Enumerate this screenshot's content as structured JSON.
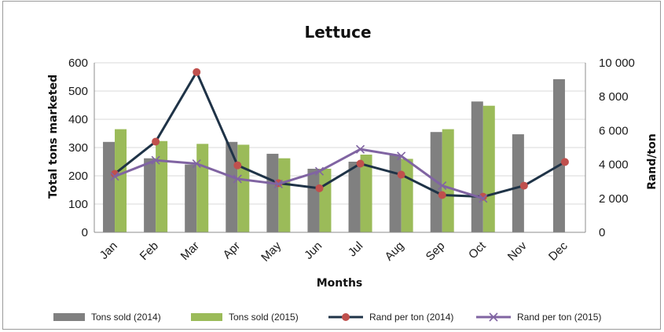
{
  "chart_data": {
    "type": "bar",
    "title": "Lettuce",
    "xlabel": "Months",
    "ylabel": "Total tons marketed",
    "y2label": "Rand/ton",
    "categories": [
      "Jan",
      "Feb",
      "Mar",
      "Apr",
      "May",
      "Jun",
      "Jul",
      "Aug",
      "Sep",
      "Oct",
      "Nov",
      "Dec"
    ],
    "ylim": [
      0,
      600
    ],
    "yticks": [
      "0",
      "100",
      "200",
      "300",
      "400",
      "500",
      "600"
    ],
    "y2lim": [
      0,
      10000
    ],
    "y2ticks": [
      "0",
      "2 000",
      "4 000",
      "6 000",
      "8 000",
      "10 000"
    ],
    "grid": true,
    "legend_position": "bottom",
    "series": [
      {
        "name": "Tons sold (2014)",
        "type": "bar",
        "axis": "left",
        "color": "#808080",
        "values": [
          320,
          262,
          240,
          320,
          278,
          225,
          250,
          275,
          355,
          463,
          347,
          542
        ]
      },
      {
        "name": "Tons sold (2015)",
        "type": "bar",
        "axis": "left",
        "color": "#9bbb59",
        "values": [
          365,
          323,
          313,
          310,
          262,
          225,
          275,
          260,
          365,
          448,
          null,
          null
        ]
      },
      {
        "name": "Rand per ton (2014)",
        "type": "line",
        "axis": "right",
        "color": "#1f3347",
        "marker": "circle",
        "marker_color": "#c0504d",
        "values": [
          3450,
          5350,
          9450,
          3950,
          2900,
          2600,
          4050,
          3400,
          2200,
          2100,
          2750,
          4150
        ]
      },
      {
        "name": "Rand per ton (2015)",
        "type": "line",
        "axis": "right",
        "color": "#8064a2",
        "marker": "x",
        "values": [
          3300,
          4250,
          4050,
          3150,
          2850,
          3600,
          4900,
          4500,
          2750,
          2000,
          null,
          null
        ]
      }
    ]
  }
}
